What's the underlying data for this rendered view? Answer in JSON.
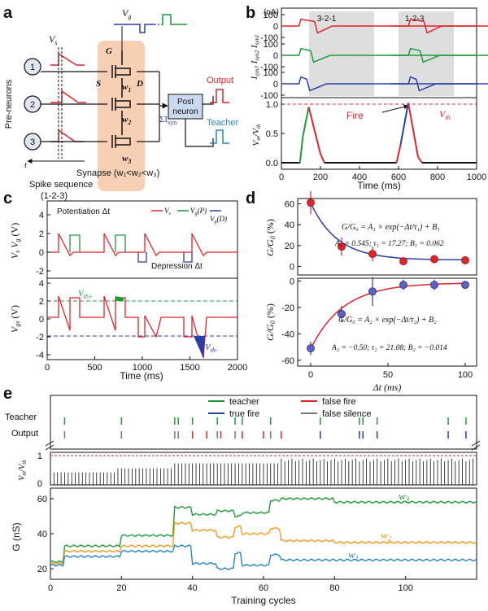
{
  "panels": {
    "a": {
      "label": "a",
      "vg": "V",
      "vg_sub": "g",
      "vs": "V",
      "vs_sub": "s",
      "pre_neurons": "Pre-neurons",
      "neurons": [
        "1",
        "2",
        "3"
      ],
      "g": "G",
      "s": "S",
      "d": "D",
      "w1": "w",
      "w1_sub": "1",
      "w2": "w",
      "w2_sub": "2",
      "w3": "w",
      "w3_sub": "3",
      "post_neuron_line1": "Post",
      "post_neuron_line2": "neuron",
      "isyn": "ΣI",
      "isyn_sub": "syn",
      "output": "Output",
      "teacher": "Teacher",
      "synapse": "Synapse (w₁<w₂<w₃)",
      "t": "t",
      "spike_seq": "Spike sequence",
      "spike_order": "(1-2-3)"
    },
    "b": {
      "label": "b",
      "unit": "(nA)",
      "isyn1": "I",
      "isyn1_sub": "syn1",
      "isyn2": "I",
      "isyn2_sub": "syn2",
      "isyn3": "I",
      "isyn3_sub": "syn3",
      "seq1": "3-2-1",
      "seq2": "1-2-3",
      "fire": "Fire",
      "vth": "V",
      "vth_sub": "th",
      "vm_label": "V",
      "vm_sub": "m",
      "vm_div": "/V",
      "vm_div_sub": "th",
      "top_ticks": [
        "100",
        "0",
        "-100"
      ],
      "v_ticks": [
        "1.0",
        "0.5",
        "0.0"
      ],
      "x_ticks": [
        "0",
        "200",
        "400",
        "600",
        "800",
        "1000"
      ],
      "xlabel": "Time (ms)"
    },
    "c": {
      "label": "c",
      "potentiation": "Potentiation Δt",
      "depression": "Depression Δt",
      "legend": [
        "V",
        "V",
        "V"
      ],
      "legend_sub": [
        "s",
        "g",
        "g"
      ],
      "legend_suffix": [
        "",
        "(P)",
        "(D)"
      ],
      "y1": "V",
      "y1_sub": "s",
      "y1b": "V",
      "y1b_sub": "g",
      "y1_unit": "(V)",
      "y2": "V",
      "y2_sub": "gs",
      "y2_unit": "(V)",
      "vthp": "V",
      "vthp_sub": "th+",
      "vthm": "V",
      "vthm_sub": "th-",
      "top_ticks": [
        "4",
        "2",
        "0",
        "-2"
      ],
      "bot_ticks": [
        "4",
        "2",
        "0",
        "-2",
        "-4"
      ],
      "x_ticks": [
        "0",
        "500",
        "1000",
        "1500",
        "2000"
      ],
      "xlabel": "Time (ms)"
    },
    "d": {
      "label": "d",
      "ylabel": "G/G",
      "ylabel_sub": "0",
      "ylabel_unit": "(%)",
      "eq_lhs": "G/G₀",
      "eq1": "= A₁ × exp(−Δt/τ₁) + B₁",
      "eq2": "= A₂ × exp(−Δt/τ₂) + B₂",
      "params1": "A₁ = 0.545;  τ₁ = 17.27;  B₁ = 0.062",
      "params2": "A₂ = −0.50;  τ₂ = 21.08;  B₂ = −0.014",
      "top_ticks": [
        "60",
        "40",
        "20",
        "0"
      ],
      "bot_ticks": [
        "0",
        "-20",
        "-40",
        "-60"
      ],
      "x_ticks": [
        "0",
        "50",
        "100"
      ],
      "xlabel": "Δt (ms)"
    },
    "e": {
      "label": "e",
      "teacher": "Teacher",
      "output": "Output",
      "legend": [
        "teacher",
        "true fire",
        "false fire",
        "false silence"
      ],
      "vm": "V",
      "vm_sub": "m",
      "vm_div": "/V",
      "vm_div_sub": "th",
      "vm_ticks": [
        "1",
        "0"
      ],
      "g_label": "G (nS)",
      "g_ticks": [
        "60",
        "40",
        "20"
      ],
      "w3": "w",
      "w3_sub": "3",
      "w2": "w",
      "w2_sub": "2",
      "w1": "w",
      "w1_sub": "1",
      "x_ticks": [
        "0",
        "20",
        "40",
        "60",
        "80",
        "100"
      ],
      "xlabel": "Training cycles"
    }
  },
  "colors": {
    "red": "#e0242c",
    "green": "#1f9a3b",
    "blue": "#2a3ea8",
    "orange": "#f39a1e",
    "cyan": "#2687c4",
    "gray": "#777777",
    "synapse_fill": "#f6cfb5",
    "post_fill": "#c9d9ef",
    "highlight": "#d6d6d6"
  },
  "chart_data": [
    {
      "type": "line",
      "panel": "b",
      "xlim": [
        0,
        1000
      ],
      "series": [
        {
          "points": [
            [
              0,
              0
            ],
            [
              90,
              0
            ],
            [
              100,
              60
            ],
            [
              170,
              40
            ],
            [
              185,
              -60
            ],
            [
              260,
              0
            ],
            [
              1000,
              0
            ]
          ]
        },
        {
          "points": [
            [
              0,
              0
            ],
            [
              90,
              0
            ],
            [
              100,
              60
            ],
            [
              150,
              40
            ],
            [
              165,
              -60
            ],
            [
              250,
              0
            ],
            [
              1000,
              0
            ]
          ]
        },
        {
          "points": [
            [
              0,
              0
            ],
            [
              90,
              0
            ],
            [
              100,
              60
            ],
            [
              130,
              40
            ],
            [
              145,
              -60
            ],
            [
              230,
              0
            ],
            [
              1000,
              0
            ]
          ]
        }
      ]
    },
    {
      "type": "line",
      "panel": "b-voltage",
      "ylim": [
        0,
        1.1
      ],
      "threshold": 1.0,
      "series": [
        {
          "points": [
            [
              0,
              0
            ],
            [
              95,
              0
            ],
            [
              110,
              0.45
            ],
            [
              140,
              0.95
            ],
            [
              200,
              0.15
            ],
            [
              220,
              0
            ],
            [
              590,
              0
            ],
            [
              610,
              0.3
            ],
            [
              650,
              1.02
            ],
            [
              700,
              0.1
            ],
            [
              720,
              0
            ],
            [
              1000,
              0
            ]
          ]
        }
      ]
    },
    {
      "type": "scatter",
      "panel": "d",
      "x": [
        0,
        20,
        40,
        60,
        80,
        100
      ],
      "series": [
        {
          "values": [
            61,
            19,
            12,
            5,
            7,
            6
          ]
        },
        {
          "values": [
            -51,
            -25,
            -8,
            -3,
            -3,
            -3
          ]
        }
      ]
    }
  ]
}
